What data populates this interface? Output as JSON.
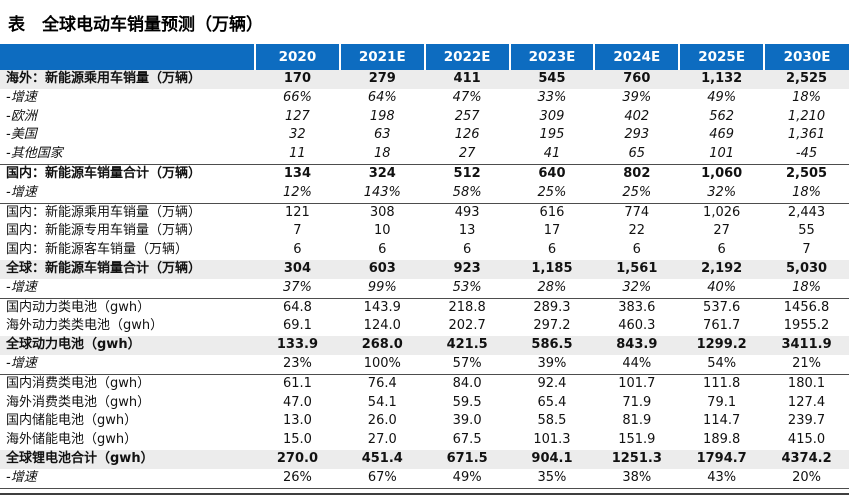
{
  "title": "表　全球电动车销量预测（万辆）",
  "columns": [
    "2020",
    "2021E",
    "2022E",
    "2023E",
    "2024E",
    "2025E",
    "2030E"
  ],
  "rows": [
    {
      "label": "海外：新能源乘用车销量（万辆）",
      "values": [
        "170",
        "279",
        "411",
        "545",
        "760",
        "1,132",
        "2,525"
      ],
      "bold": true,
      "band": true,
      "italic": "none",
      "rule_below": "none"
    },
    {
      "label": "-增速",
      "values": [
        "66%",
        "64%",
        "47%",
        "33%",
        "39%",
        "49%",
        "18%"
      ],
      "bold": false,
      "band": false,
      "italic": "row",
      "rule_below": "none"
    },
    {
      "label": "-欧洲",
      "values": [
        "127",
        "198",
        "257",
        "309",
        "402",
        "562",
        "1,210"
      ],
      "bold": false,
      "band": false,
      "italic": "row",
      "rule_below": "none"
    },
    {
      "label": "-美国",
      "values": [
        "32",
        "63",
        "126",
        "195",
        "293",
        "469",
        "1,361"
      ],
      "bold": false,
      "band": false,
      "italic": "row",
      "rule_below": "none"
    },
    {
      "label": "-其他国家",
      "values": [
        "11",
        "18",
        "27",
        "41",
        "65",
        "101",
        "-45"
      ],
      "bold": false,
      "band": false,
      "italic": "row",
      "rule_below": "thin"
    },
    {
      "label": "国内：新能源车销量合计（万辆）",
      "values": [
        "134",
        "324",
        "512",
        "640",
        "802",
        "1,060",
        "2,505"
      ],
      "bold": true,
      "band": false,
      "italic": "none",
      "rule_below": "none"
    },
    {
      "label": "-增速",
      "values": [
        "12%",
        "143%",
        "58%",
        "25%",
        "25%",
        "32%",
        "18%"
      ],
      "bold": false,
      "band": false,
      "italic": "row",
      "rule_below": "thin"
    },
    {
      "label": "国内：新能源乘用车销量（万辆）",
      "values": [
        "121",
        "308",
        "493",
        "616",
        "774",
        "1,026",
        "2,443"
      ],
      "bold": false,
      "band": false,
      "italic": "none",
      "rule_below": "none"
    },
    {
      "label": "国内：新能源专用车销量（万辆）",
      "values": [
        "7",
        "10",
        "13",
        "17",
        "22",
        "27",
        "55"
      ],
      "bold": false,
      "band": false,
      "italic": "none",
      "rule_below": "none"
    },
    {
      "label": "国内：新能源客车销量（万辆）",
      "values": [
        "6",
        "6",
        "6",
        "6",
        "6",
        "6",
        "7"
      ],
      "bold": false,
      "band": false,
      "italic": "none",
      "rule_below": "none"
    },
    {
      "label": "全球：新能源车销量合计（万辆）",
      "values": [
        "304",
        "603",
        "923",
        "1,185",
        "1,561",
        "2,192",
        "5,030"
      ],
      "bold": true,
      "band": true,
      "italic": "none",
      "rule_below": "none"
    },
    {
      "label": "-增速",
      "values": [
        "37%",
        "99%",
        "53%",
        "28%",
        "32%",
        "40%",
        "18%"
      ],
      "bold": false,
      "band": false,
      "italic": "row",
      "rule_below": "thin"
    },
    {
      "label": "国内动力类电池（gwh）",
      "values": [
        "64.8",
        "143.9",
        "218.8",
        "289.3",
        "383.6",
        "537.6",
        "1456.8"
      ],
      "bold": false,
      "band": false,
      "italic": "none",
      "rule_below": "none"
    },
    {
      "label": "海外动力类类电池（gwh）",
      "values": [
        "69.1",
        "124.0",
        "202.7",
        "297.2",
        "460.3",
        "761.7",
        "1955.2"
      ],
      "bold": false,
      "band": false,
      "italic": "none",
      "rule_below": "none"
    },
    {
      "label": "全球动力电池（gwh）",
      "values": [
        "133.9",
        "268.0",
        "421.5",
        "586.5",
        "843.9",
        "1299.2",
        "3411.9"
      ],
      "bold": true,
      "band": true,
      "italic": "none",
      "rule_below": "none"
    },
    {
      "label": "-增速",
      "values": [
        "23%",
        "100%",
        "57%",
        "39%",
        "44%",
        "54%",
        "21%"
      ],
      "bold": false,
      "band": false,
      "italic": "label",
      "rule_below": "thin"
    },
    {
      "label": "国内消费类电池（gwh）",
      "values": [
        "61.1",
        "76.4",
        "84.0",
        "92.4",
        "101.7",
        "111.8",
        "180.1"
      ],
      "bold": false,
      "band": false,
      "italic": "none",
      "rule_below": "none"
    },
    {
      "label": "海外消费类电池（gwh）",
      "values": [
        "47.0",
        "54.1",
        "59.5",
        "65.4",
        "71.9",
        "79.1",
        "127.4"
      ],
      "bold": false,
      "band": false,
      "italic": "none",
      "rule_below": "none"
    },
    {
      "label": "国内储能电池（gwh）",
      "values": [
        "13.0",
        "26.0",
        "39.0",
        "58.5",
        "81.9",
        "114.7",
        "239.7"
      ],
      "bold": false,
      "band": false,
      "italic": "none",
      "rule_below": "none"
    },
    {
      "label": "海外储能电池（gwh）",
      "values": [
        "15.0",
        "27.0",
        "67.5",
        "101.3",
        "151.9",
        "189.8",
        "415.0"
      ],
      "bold": false,
      "band": false,
      "italic": "none",
      "rule_below": "none"
    },
    {
      "label": "全球锂电池合计（gwh）",
      "values": [
        "270.0",
        "451.4",
        "671.5",
        "904.1",
        "1251.3",
        "1794.7",
        "4374.2"
      ],
      "bold": true,
      "band": true,
      "italic": "none",
      "rule_below": "none"
    },
    {
      "label": "-增速",
      "values": [
        "26%",
        "67%",
        "49%",
        "35%",
        "38%",
        "43%",
        "20%"
      ],
      "bold": false,
      "band": false,
      "italic": "label",
      "rule_below": "thin"
    }
  ],
  "colors": {
    "header_bg": "#0d6cc0",
    "header_text": "#ffffff",
    "band_bg": "#ececec",
    "rule": "#4d4d4d",
    "thick_rule": "#3f3f3f"
  }
}
